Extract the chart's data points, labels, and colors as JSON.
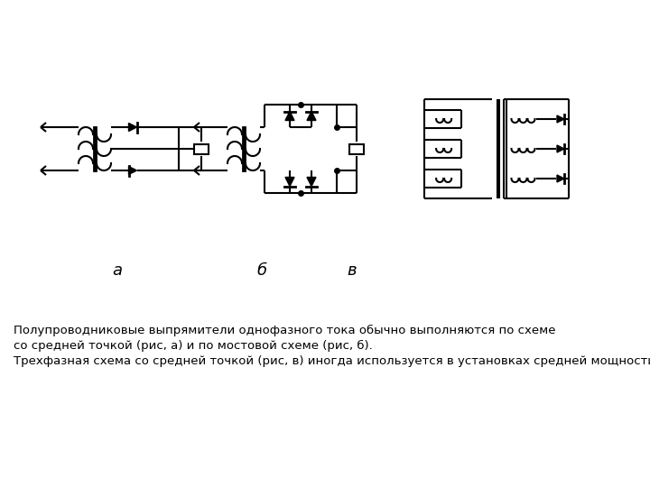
{
  "bg_color": "#ffffff",
  "line_color": "#000000",
  "label_a": "а",
  "label_b": "б",
  "label_v": "в",
  "text_line1": "Полупроводниковые выпрямители однофазного тока обычно выполняются по схеме",
  "text_line2": "со средней точкой (рис, а) и по мостовой схеме (рис, б).",
  "text_line3": "Трехфазная схема со средней точкой (рис, в) иногда используется в установках средней мощности",
  "figsize": [
    7.2,
    5.4
  ],
  "dpi": 100
}
